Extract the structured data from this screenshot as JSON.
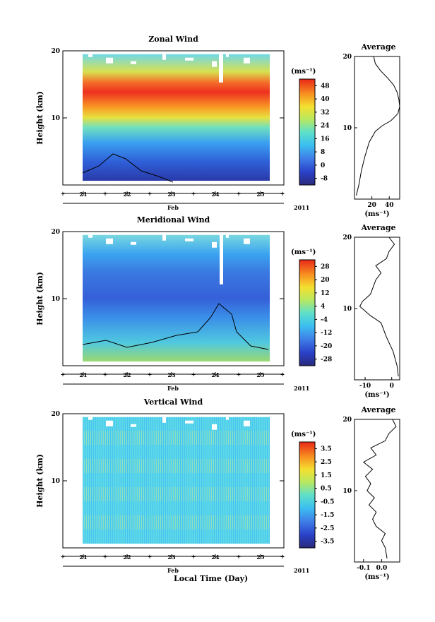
{
  "chart_data": [
    {
      "type": "heatmap",
      "title": "Zonal Wind",
      "ylabel": "Height (km)",
      "xlabel": "Feb",
      "year": "2011",
      "x_ticks": [
        "21",
        "22",
        "23",
        "24",
        "25"
      ],
      "y_ticks": [
        "20",
        "10"
      ],
      "ylim": [
        0,
        20
      ],
      "colorbar": {
        "unit": "(ms⁻¹)",
        "ticks": [
          "48",
          "40",
          "32",
          "24",
          "16",
          "8",
          "0",
          "-8"
        ],
        "min": -12,
        "max": 52
      },
      "average": {
        "title": "Average",
        "x_ticks": [
          "20",
          "40"
        ],
        "xlabel": "(ms⁻¹)",
        "xlim": [
          0,
          52
        ],
        "profile": [
          [
            2,
            0.5
          ],
          [
            5,
            2
          ],
          [
            8,
            4
          ],
          [
            12,
            6
          ],
          [
            17,
            8
          ],
          [
            24,
            9.5
          ],
          [
            32,
            10.3
          ],
          [
            42,
            11
          ],
          [
            50,
            12
          ],
          [
            52,
            13
          ],
          [
            51,
            14
          ],
          [
            49,
            15
          ],
          [
            45,
            16
          ],
          [
            38,
            17
          ],
          [
            30,
            18
          ],
          [
            24,
            19
          ],
          [
            22,
            20
          ]
        ]
      }
    },
    {
      "type": "heatmap",
      "title": "Meridional Wind",
      "ylabel": "Height (km)",
      "xlabel": "Feb",
      "year": "2011",
      "x_ticks": [
        "21",
        "22",
        "23",
        "24",
        "25"
      ],
      "y_ticks": [
        "20",
        "10"
      ],
      "ylim": [
        0,
        20
      ],
      "colorbar": {
        "unit": "(ms⁻¹)",
        "ticks": [
          "28",
          "20",
          "12",
          "4",
          "-4",
          "-12",
          "-20",
          "-28"
        ],
        "min": -32,
        "max": 32
      },
      "average": {
        "title": "Average",
        "x_ticks": [
          "-10",
          "0"
        ],
        "xlabel": "(ms⁻¹)",
        "xlim": [
          -14,
          3
        ],
        "profile": [
          [
            2.5,
            0.5
          ],
          [
            2,
            2
          ],
          [
            0.5,
            4
          ],
          [
            -2,
            6
          ],
          [
            -4,
            8
          ],
          [
            -8,
            9
          ],
          [
            -12,
            10.3
          ],
          [
            -11,
            11
          ],
          [
            -8,
            12
          ],
          [
            -6,
            14
          ],
          [
            -4,
            15
          ],
          [
            -6,
            16
          ],
          [
            -2,
            17
          ],
          [
            -1,
            18
          ],
          [
            1,
            19
          ],
          [
            -1,
            20
          ]
        ]
      }
    },
    {
      "type": "heatmap",
      "title": "Vertical Wind",
      "ylabel": "Height (km)",
      "xlabel": "Feb",
      "xlabel_main": "Local Time (Day)",
      "year": "2011",
      "x_ticks": [
        "21",
        "22",
        "23",
        "24",
        "25"
      ],
      "y_ticks": [
        "20",
        "10"
      ],
      "ylim": [
        0,
        20
      ],
      "colorbar": {
        "unit": "(ms⁻¹)",
        "ticks": [
          "3.5",
          "2.5",
          "1.5",
          "0.5",
          "-0.5",
          "-1.5",
          "-2.5",
          "-3.5"
        ],
        "min": -4,
        "max": 4
      },
      "average": {
        "title": "Average",
        "x_ticks": [
          "-0.1",
          "0.0"
        ],
        "xlabel": "(ms⁻¹)",
        "xlim": [
          -0.15,
          0.1
        ],
        "profile": [
          [
            0.03,
            0.5
          ],
          [
            0.02,
            2
          ],
          [
            0.0,
            3
          ],
          [
            0.02,
            4
          ],
          [
            -0.03,
            5
          ],
          [
            -0.05,
            6
          ],
          [
            -0.03,
            7
          ],
          [
            -0.07,
            8
          ],
          [
            -0.04,
            9
          ],
          [
            -0.08,
            10
          ],
          [
            -0.06,
            11
          ],
          [
            -0.09,
            12
          ],
          [
            -0.05,
            13
          ],
          [
            -0.1,
            14
          ],
          [
            -0.03,
            15
          ],
          [
            -0.06,
            16
          ],
          [
            0.02,
            17
          ],
          [
            0.04,
            18
          ],
          [
            0.08,
            19
          ],
          [
            0.06,
            20
          ]
        ]
      }
    }
  ]
}
